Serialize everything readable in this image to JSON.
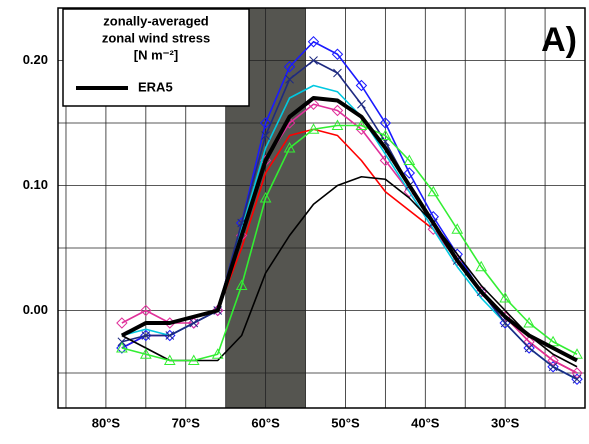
{
  "chart_data": {
    "type": "line",
    "legend_title": [
      "zonally-averaged",
      "zonal wind stress",
      "[N m⁻²]"
    ],
    "annotation": "A)",
    "x": [
      -78,
      -75,
      -72,
      -69,
      -66,
      -63,
      -60,
      -57,
      -54,
      -51,
      -48,
      -45,
      -42,
      -39,
      -36,
      -33,
      -30,
      -27,
      -24,
      -21
    ],
    "series": [
      {
        "color": "#ff0000",
        "values": [
          -0.03,
          -0.02,
          -0.02,
          -0.01,
          0.0,
          0.05,
          0.11,
          0.14,
          0.145,
          0.14,
          0.12,
          0.095,
          0.08,
          0.065,
          0.04,
          0.015,
          -0.005,
          -0.025,
          -0.04,
          -0.05
        ]
      },
      {
        "color": "#1a1aff",
        "marker": "diamond",
        "values": [
          -0.03,
          -0.02,
          -0.02,
          -0.01,
          0.0,
          0.07,
          0.15,
          0.195,
          0.215,
          0.205,
          0.18,
          0.15,
          0.11,
          0.075,
          0.045,
          0.015,
          -0.01,
          -0.03,
          -0.045,
          -0.055
        ]
      },
      {
        "color": "#e0309a",
        "marker": "diamond",
        "values": [
          -0.01,
          0.0,
          -0.01,
          -0.01,
          0.0,
          0.06,
          0.12,
          0.15,
          0.165,
          0.16,
          0.145,
          0.12,
          0.095,
          0.065,
          0.04,
          0.015,
          -0.005,
          -0.025,
          -0.04,
          -0.05
        ]
      },
      {
        "color": "#00c8e0",
        "values": [
          -0.02,
          -0.015,
          -0.02,
          -0.01,
          0.0,
          0.065,
          0.13,
          0.17,
          0.18,
          0.175,
          0.155,
          0.125,
          0.095,
          0.065,
          0.035,
          0.01,
          -0.01,
          -0.03,
          -0.045,
          -0.055
        ]
      },
      {
        "color": "#1e2a80",
        "marker": "x",
        "values": [
          -0.025,
          -0.02,
          -0.02,
          -0.01,
          0.0,
          0.07,
          0.14,
          0.185,
          0.2,
          0.19,
          0.165,
          0.135,
          0.1,
          0.07,
          0.04,
          0.015,
          -0.01,
          -0.03,
          -0.045,
          -0.055
        ]
      },
      {
        "color": "#000000",
        "values": [
          -0.02,
          -0.03,
          -0.04,
          -0.04,
          -0.04,
          -0.02,
          0.03,
          0.06,
          0.085,
          0.1,
          0.107,
          0.105,
          0.09,
          0.07,
          0.045,
          0.02,
          0.0,
          -0.02,
          -0.035,
          -0.045
        ]
      },
      {
        "color": "#33ee33",
        "marker": "triangle",
        "values": [
          -0.03,
          -0.035,
          -0.04,
          -0.04,
          -0.035,
          0.02,
          0.09,
          0.13,
          0.145,
          0.148,
          0.148,
          0.14,
          0.12,
          0.095,
          0.065,
          0.035,
          0.01,
          -0.01,
          -0.025,
          -0.035
        ]
      },
      {
        "name": "ERA5",
        "color": "#000000",
        "values": [
          -0.02,
          -0.01,
          -0.01,
          -0.005,
          0.0,
          0.06,
          0.12,
          0.155,
          0.17,
          0.168,
          0.155,
          0.13,
          0.1,
          0.07,
          0.04,
          0.015,
          -0.005,
          -0.02,
          -0.03,
          -0.04
        ]
      }
    ],
    "band": [
      -65,
      -55
    ],
    "band_color": "#555550",
    "xlim": [
      -86,
      -20
    ],
    "xticks": [
      {
        "value": -80,
        "label": "80°S"
      },
      {
        "value": -70,
        "label": "70°S"
      },
      {
        "value": -60,
        "label": "60°S"
      },
      {
        "value": -50,
        "label": "50°S"
      },
      {
        "value": -40,
        "label": "40°S"
      },
      {
        "value": -30,
        "label": "30°S"
      }
    ],
    "x_minor_ticks": [
      -85,
      -75,
      -65,
      -55,
      -45,
      -35,
      -25
    ],
    "ylim": [
      -0.078,
      0.242
    ],
    "yticks": [
      {
        "value": 0,
        "label": "0.00"
      },
      {
        "value": 0.1,
        "label": "0.10"
      },
      {
        "value": 0.2,
        "label": "0.20"
      }
    ],
    "y_minor_ticks": [
      -0.05,
      0.05,
      0.15
    ],
    "grid": true
  }
}
